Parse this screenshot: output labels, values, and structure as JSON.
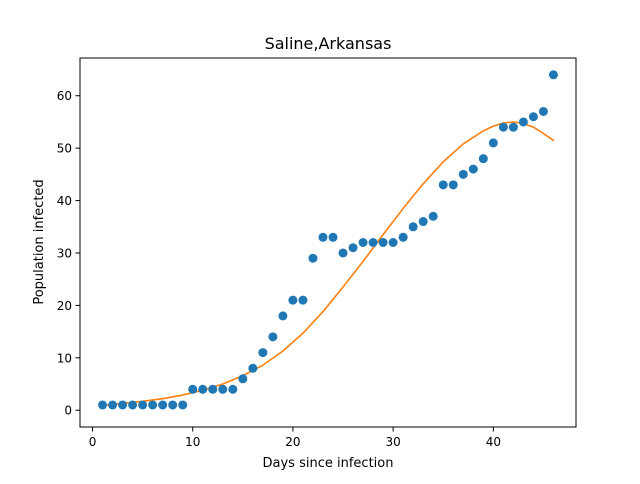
{
  "chart_data": {
    "type": "scatter",
    "title": "Saline,Arkansas",
    "xlabel": "Days since infection",
    "ylabel": "Population infected",
    "xlim": [
      -1.25,
      48.25
    ],
    "ylim": [
      -3.2,
      67.2
    ],
    "xticks": [
      0,
      10,
      20,
      30,
      40
    ],
    "yticks": [
      0,
      10,
      20,
      30,
      40,
      50,
      60
    ],
    "grid": false,
    "legend": "none",
    "series": [
      {
        "kind": "scatter",
        "color": "#1f77b4",
        "points": [
          {
            "x": 1,
            "y": 1
          },
          {
            "x": 2,
            "y": 1
          },
          {
            "x": 3,
            "y": 1
          },
          {
            "x": 4,
            "y": 1
          },
          {
            "x": 5,
            "y": 1
          },
          {
            "x": 6,
            "y": 1
          },
          {
            "x": 7,
            "y": 1
          },
          {
            "x": 8,
            "y": 1
          },
          {
            "x": 9,
            "y": 1
          },
          {
            "x": 10,
            "y": 4
          },
          {
            "x": 11,
            "y": 4
          },
          {
            "x": 12,
            "y": 4
          },
          {
            "x": 13,
            "y": 4
          },
          {
            "x": 14,
            "y": 4
          },
          {
            "x": 15,
            "y": 6
          },
          {
            "x": 16,
            "y": 8
          },
          {
            "x": 17,
            "y": 11
          },
          {
            "x": 18,
            "y": 14
          },
          {
            "x": 19,
            "y": 18
          },
          {
            "x": 20,
            "y": 21
          },
          {
            "x": 21,
            "y": 21
          },
          {
            "x": 22,
            "y": 29
          },
          {
            "x": 23,
            "y": 33
          },
          {
            "x": 24,
            "y": 33
          },
          {
            "x": 25,
            "y": 30
          },
          {
            "x": 26,
            "y": 31
          },
          {
            "x": 27,
            "y": 32
          },
          {
            "x": 28,
            "y": 32
          },
          {
            "x": 29,
            "y": 32
          },
          {
            "x": 30,
            "y": 32
          },
          {
            "x": 31,
            "y": 33
          },
          {
            "x": 32,
            "y": 35
          },
          {
            "x": 33,
            "y": 36
          },
          {
            "x": 34,
            "y": 37
          },
          {
            "x": 35,
            "y": 43
          },
          {
            "x": 36,
            "y": 43
          },
          {
            "x": 37,
            "y": 45
          },
          {
            "x": 38,
            "y": 46
          },
          {
            "x": 39,
            "y": 48
          },
          {
            "x": 40,
            "y": 51
          },
          {
            "x": 41,
            "y": 54
          },
          {
            "x": 42,
            "y": 54
          },
          {
            "x": 43,
            "y": 55
          },
          {
            "x": 44,
            "y": 56
          },
          {
            "x": 45,
            "y": 57
          },
          {
            "x": 46,
            "y": 64
          }
        ]
      },
      {
        "kind": "line",
        "color": "#ff7f0e",
        "points": [
          {
            "x": 1,
            "y": 0.9
          },
          {
            "x": 3,
            "y": 1.3
          },
          {
            "x": 5,
            "y": 1.7
          },
          {
            "x": 7,
            "y": 2.2
          },
          {
            "x": 9,
            "y": 2.9
          },
          {
            "x": 11,
            "y": 3.8
          },
          {
            "x": 13,
            "y": 5.0
          },
          {
            "x": 15,
            "y": 6.6
          },
          {
            "x": 17,
            "y": 8.6
          },
          {
            "x": 19,
            "y": 11.3
          },
          {
            "x": 21,
            "y": 14.7
          },
          {
            "x": 23,
            "y": 18.8
          },
          {
            "x": 25,
            "y": 23.5
          },
          {
            "x": 27,
            "y": 28.4
          },
          {
            "x": 29,
            "y": 33.5
          },
          {
            "x": 31,
            "y": 38.5
          },
          {
            "x": 33,
            "y": 43.2
          },
          {
            "x": 35,
            "y": 47.4
          },
          {
            "x": 37,
            "y": 50.8
          },
          {
            "x": 39,
            "y": 53.3
          },
          {
            "x": 40,
            "y": 54.2
          },
          {
            "x": 41,
            "y": 54.8
          },
          {
            "x": 42,
            "y": 55.0
          },
          {
            "x": 43,
            "y": 54.7
          },
          {
            "x": 44,
            "y": 54.0
          },
          {
            "x": 45,
            "y": 52.8
          },
          {
            "x": 46,
            "y": 51.5
          }
        ]
      }
    ]
  }
}
